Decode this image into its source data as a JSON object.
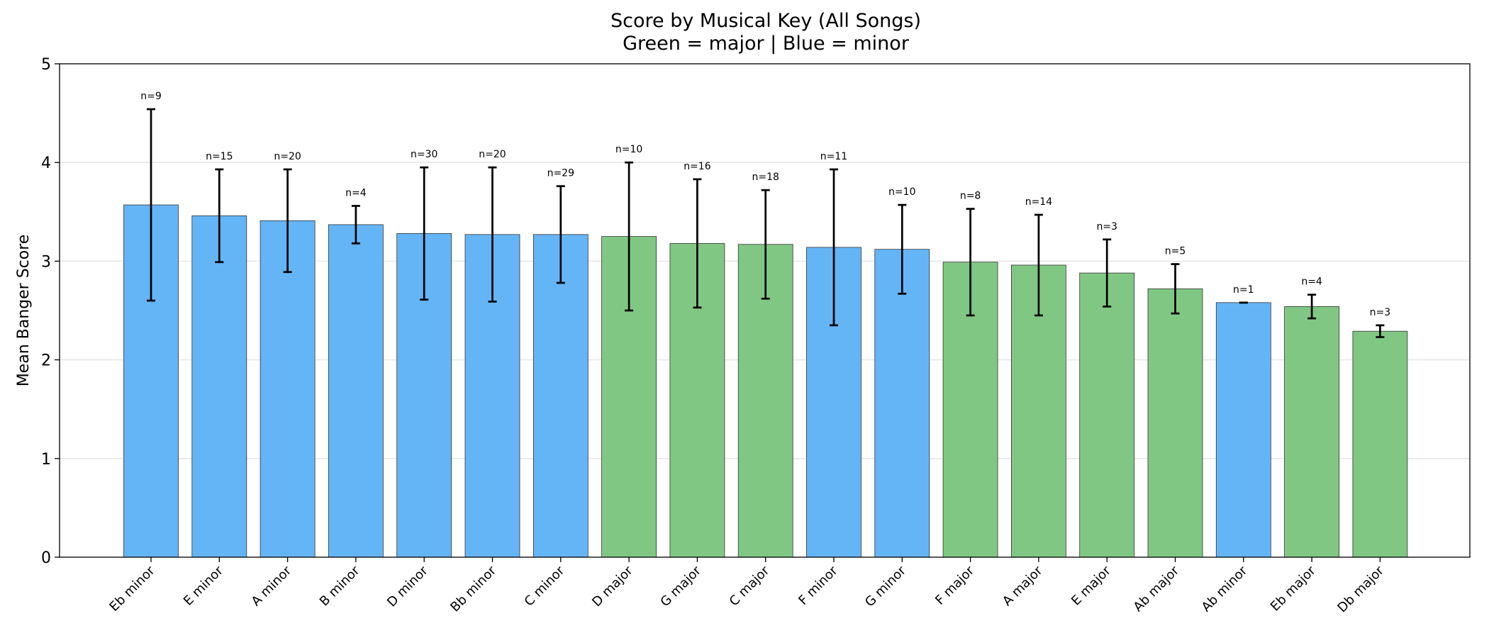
{
  "chart_data": {
    "type": "bar",
    "title": "Score by Musical Key (All Songs)",
    "subtitle": "Green = major | Blue = minor",
    "y_label": "Mean Banger Score",
    "categories": [
      "Eb minor",
      "E minor",
      "A minor",
      "B minor",
      "D minor",
      "Bb minor",
      "C minor",
      "D major",
      "G major",
      "C major",
      "F minor",
      "G minor",
      "F major",
      "A major",
      "E major",
      "Ab major",
      "Ab minor",
      "Eb major",
      "Db major"
    ],
    "values": [
      3.57,
      3.46,
      3.41,
      3.37,
      3.28,
      3.27,
      3.27,
      3.25,
      3.18,
      3.17,
      3.14,
      3.12,
      2.99,
      2.96,
      2.88,
      2.72,
      2.58,
      2.54,
      2.29
    ],
    "errors": [
      0.97,
      0.47,
      0.52,
      0.19,
      0.67,
      0.68,
      0.49,
      0.75,
      0.65,
      0.55,
      0.79,
      0.45,
      0.54,
      0.51,
      0.34,
      0.25,
      0,
      0.12,
      0.06
    ],
    "annotations": [
      "n=9",
      "n=15",
      "n=20",
      "n=4",
      "n=30",
      "n=20",
      "n=29",
      "n=10",
      "n=16",
      "n=18",
      "n=11",
      "n=10",
      "n=8",
      "n=14",
      "n=3",
      "n=5",
      "n=1",
      "n=4",
      "n=3"
    ],
    "colors": [
      "#64b5f6",
      "#64b5f6",
      "#64b5f6",
      "#64b5f6",
      "#64b5f6",
      "#64b5f6",
      "#64b5f6",
      "#81c784",
      "#81c784",
      "#81c784",
      "#64b5f6",
      "#64b5f6",
      "#81c784",
      "#81c784",
      "#81c784",
      "#81c784",
      "#64b5f6",
      "#81c784",
      "#81c784"
    ],
    "ylim": [
      0,
      5
    ],
    "yticks": [
      0,
      1,
      2,
      3,
      4,
      5
    ],
    "grid": true
  }
}
